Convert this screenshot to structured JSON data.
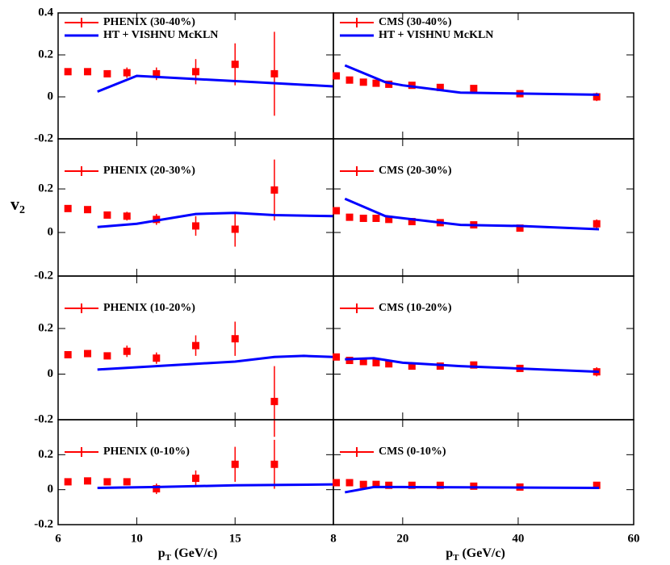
{
  "chart_data": [
    {
      "type": "errorbar",
      "ylim": [
        -0.2,
        0.4
      ],
      "yticks": [
        -0.2,
        0,
        0.2,
        0.4
      ],
      "legend": true,
      "series": [
        {
          "name": "PHENIX (30-40%)",
          "color": "#ff0000",
          "x": [
            6.5,
            7.5,
            8.5,
            9.5,
            11,
            13,
            15,
            17
          ],
          "values": [
            0.12,
            0.12,
            0.11,
            0.115,
            0.11,
            0.12,
            0.155,
            0.11
          ],
          "errors": [
            0.005,
            0.005,
            0.015,
            0.025,
            0.03,
            0.06,
            0.1,
            0.2
          ]
        },
        {
          "name": "HT + VISHNU McKLN",
          "color": "#0000ff",
          "x": [
            8,
            10,
            12,
            16,
            20
          ],
          "values": [
            0.025,
            0.1,
            0.09,
            0.07,
            0.05
          ]
        }
      ]
    },
    {
      "type": "errorbar",
      "legend": true,
      "series": [
        {
          "name": "CMS (30-40%)",
          "color": "#ff0000",
          "x": [
            8.5,
            10.8,
            13.2,
            15.4,
            17.6,
            21.6,
            26.5,
            32.3,
            40.3,
            53.6
          ],
          "values": [
            0.1,
            0.08,
            0.07,
            0.065,
            0.06,
            0.055,
            0.045,
            0.04,
            0.015,
            0
          ],
          "errors": [
            0.01,
            0.01,
            0.01,
            0.01,
            0.01,
            0.01,
            0.01,
            0.01,
            0.01,
            0.02
          ]
        },
        {
          "name": "HT + VISHNU McKLN",
          "color": "#0000ff",
          "x": [
            10,
            17,
            20,
            30,
            54
          ],
          "values": [
            0.15,
            0.07,
            0.055,
            0.02,
            0.01
          ]
        }
      ]
    },
    {
      "type": "errorbar",
      "ylim": [
        -0.2,
        0.43
      ],
      "yticks": [
        -0.2,
        0,
        0.2
      ],
      "legend": true,
      "ylabel": {
        "text": "v",
        "sub": "2"
      },
      "series": [
        {
          "name": "PHENIX (20-30%)",
          "color": "#ff0000",
          "x": [
            6.5,
            7.5,
            8.5,
            9.5,
            11,
            13,
            15,
            17
          ],
          "values": [
            0.11,
            0.105,
            0.08,
            0.075,
            0.06,
            0.03,
            0.015,
            0.195
          ],
          "errors": [
            0.005,
            0.005,
            0.015,
            0.02,
            0.025,
            0.045,
            0.08,
            0.14
          ]
        },
        {
          "color": "#0000ff",
          "x": [
            8,
            10,
            13,
            15,
            17,
            20
          ],
          "values": [
            0.025,
            0.04,
            0.085,
            0.09,
            0.08,
            0.075
          ]
        }
      ]
    },
    {
      "type": "errorbar",
      "legend": true,
      "series": [
        {
          "name": "CMS (20-30%)",
          "color": "#ff0000",
          "x": [
            8.5,
            10.8,
            13.2,
            15.4,
            17.6,
            21.6,
            26.5,
            32.3,
            40.3,
            53.6
          ],
          "values": [
            0.1,
            0.07,
            0.065,
            0.065,
            0.06,
            0.05,
            0.045,
            0.035,
            0.02,
            0.04
          ],
          "errors": [
            0.01,
            0.01,
            0.01,
            0.01,
            0.01,
            0.01,
            0.01,
            0.01,
            0.01,
            0.02
          ]
        },
        {
          "color": "#0000ff",
          "x": [
            10,
            17,
            30,
            40,
            54
          ],
          "values": [
            0.155,
            0.075,
            0.035,
            0.03,
            0.015
          ]
        }
      ]
    },
    {
      "type": "errorbar",
      "ylim": [
        -0.2,
        0.43
      ],
      "yticks": [
        -0.2,
        0,
        0.2
      ],
      "legend": true,
      "series": [
        {
          "name": "PHENIX (10-20%)",
          "color": "#ff0000",
          "x": [
            6.5,
            7.5,
            8.5,
            9.5,
            11,
            13,
            15,
            17
          ],
          "values": [
            0.085,
            0.09,
            0.08,
            0.1,
            0.07,
            0.125,
            0.155,
            -0.12
          ],
          "errors": [
            0.005,
            0.005,
            0.015,
            0.025,
            0.025,
            0.045,
            0.075,
            0.155
          ]
        },
        {
          "color": "#0000ff",
          "x": [
            8,
            13,
            15,
            17,
            18.5,
            20
          ],
          "values": [
            0.02,
            0.045,
            0.055,
            0.075,
            0.08,
            0.075
          ]
        }
      ]
    },
    {
      "type": "errorbar",
      "legend": true,
      "series": [
        {
          "name": "CMS (10-20%)",
          "color": "#ff0000",
          "x": [
            8.5,
            10.8,
            13.2,
            15.4,
            17.6,
            21.6,
            26.5,
            32.3,
            40.3,
            53.6
          ],
          "values": [
            0.075,
            0.06,
            0.055,
            0.05,
            0.045,
            0.035,
            0.035,
            0.04,
            0.025,
            0.01
          ],
          "errors": [
            0.01,
            0.01,
            0.01,
            0.01,
            0.01,
            0.01,
            0.01,
            0.01,
            0.01,
            0.02
          ]
        },
        {
          "color": "#0000ff",
          "x": [
            10,
            15,
            20,
            30,
            54
          ],
          "values": [
            0.065,
            0.07,
            0.05,
            0.035,
            0.01
          ]
        }
      ]
    },
    {
      "type": "errorbar",
      "ylim": [
        -0.2,
        0.4
      ],
      "yticks": [
        -0.2,
        0,
        0.2
      ],
      "xlim": [
        6,
        20
      ],
      "xticks": [
        6,
        10,
        15
      ],
      "legend": true,
      "xlabel": {
        "text": "p",
        "sub": "T",
        "rest": " (GeV/c)"
      },
      "series": [
        {
          "name": "PHENIX (0-10%)",
          "color": "#ff0000",
          "x": [
            6.5,
            7.5,
            8.5,
            9.5,
            11,
            13,
            15,
            17
          ],
          "values": [
            0.045,
            0.05,
            0.045,
            0.045,
            0.005,
            0.065,
            0.145,
            0.145
          ],
          "errors": [
            0.005,
            0.005,
            0.01,
            0.02,
            0.03,
            0.045,
            0.1,
            0.14
          ]
        },
        {
          "color": "#0000ff",
          "x": [
            8,
            11,
            15,
            20
          ],
          "values": [
            0.01,
            0.015,
            0.025,
            0.03
          ]
        }
      ]
    },
    {
      "type": "errorbar",
      "xlim": [
        8,
        60
      ],
      "xticks": [
        8,
        20,
        40,
        60
      ],
      "legend": true,
      "xlabel": {
        "text": "p",
        "sub": "T",
        "rest": " (GeV/c)"
      },
      "series": [
        {
          "name": "CMS (0-10%)",
          "color": "#ff0000",
          "x": [
            8.5,
            10.8,
            13.2,
            15.4,
            17.6,
            21.6,
            26.5,
            32.3,
            40.3,
            53.6
          ],
          "values": [
            0.04,
            0.04,
            0.03,
            0.03,
            0.025,
            0.025,
            0.025,
            0.02,
            0.015,
            0.025
          ],
          "errors": [
            0.01,
            0.01,
            0.01,
            0.01,
            0.01,
            0.01,
            0.01,
            0.01,
            0.01,
            0.01
          ]
        },
        {
          "color": "#0000ff",
          "x": [
            10,
            15,
            20,
            54
          ],
          "values": [
            -0.015,
            0.015,
            0.015,
            0.01
          ]
        }
      ]
    }
  ]
}
